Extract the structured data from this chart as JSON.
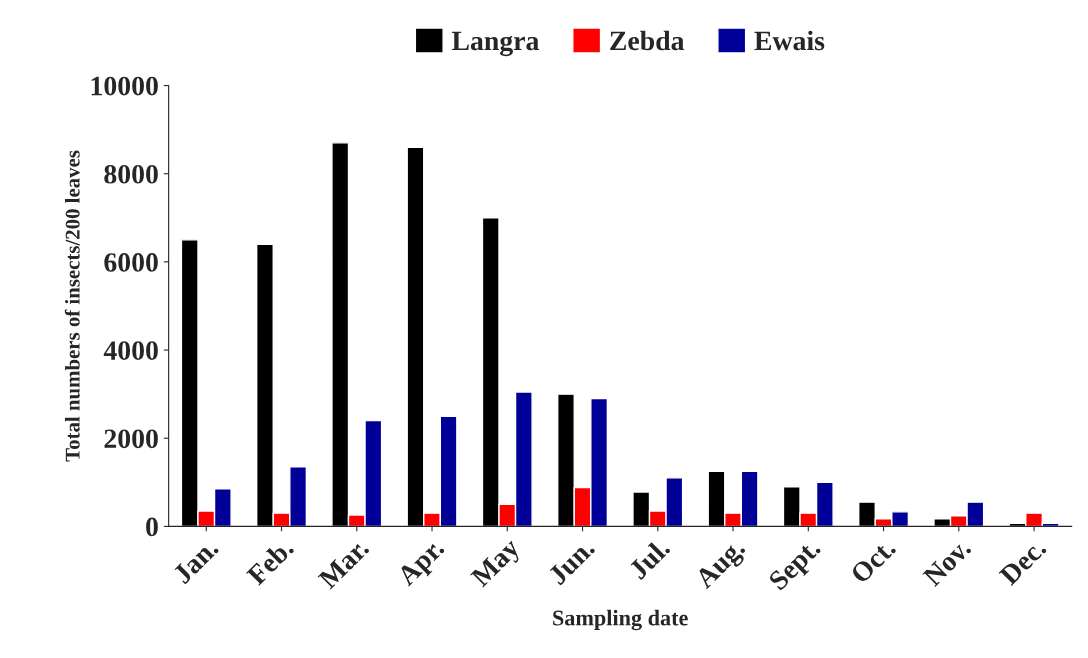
{
  "chart_data": {
    "type": "bar",
    "xlabel": "Sampling date",
    "ylabel": "Total numbers of insects/200 leaves",
    "categories": [
      "Jan.",
      "Feb.",
      "Mar.",
      "Apr.",
      "May",
      "Jun.",
      "Jul.",
      "Aug.",
      "Sept.",
      "Oct.",
      "Nov.",
      "Dec."
    ],
    "series": [
      {
        "name": "Langra",
        "color": "#000000",
        "values": [
          6500,
          6400,
          8700,
          8600,
          7000,
          3000,
          780,
          1250,
          900,
          550,
          170,
          70
        ]
      },
      {
        "name": "Zebda",
        "color": "#ff0000",
        "values": [
          350,
          300,
          260,
          300,
          500,
          880,
          350,
          300,
          300,
          170,
          240,
          300
        ]
      },
      {
        "name": "Ewais",
        "color": "#000099",
        "values": [
          850,
          1350,
          2400,
          2500,
          3050,
          2900,
          1100,
          1250,
          1000,
          330,
          550,
          70
        ]
      }
    ],
    "ylim": [
      0,
      10000
    ],
    "yticks": [
      0,
      2000,
      4000,
      6000,
      8000,
      10000
    ],
    "grid": false,
    "legend": "top"
  }
}
